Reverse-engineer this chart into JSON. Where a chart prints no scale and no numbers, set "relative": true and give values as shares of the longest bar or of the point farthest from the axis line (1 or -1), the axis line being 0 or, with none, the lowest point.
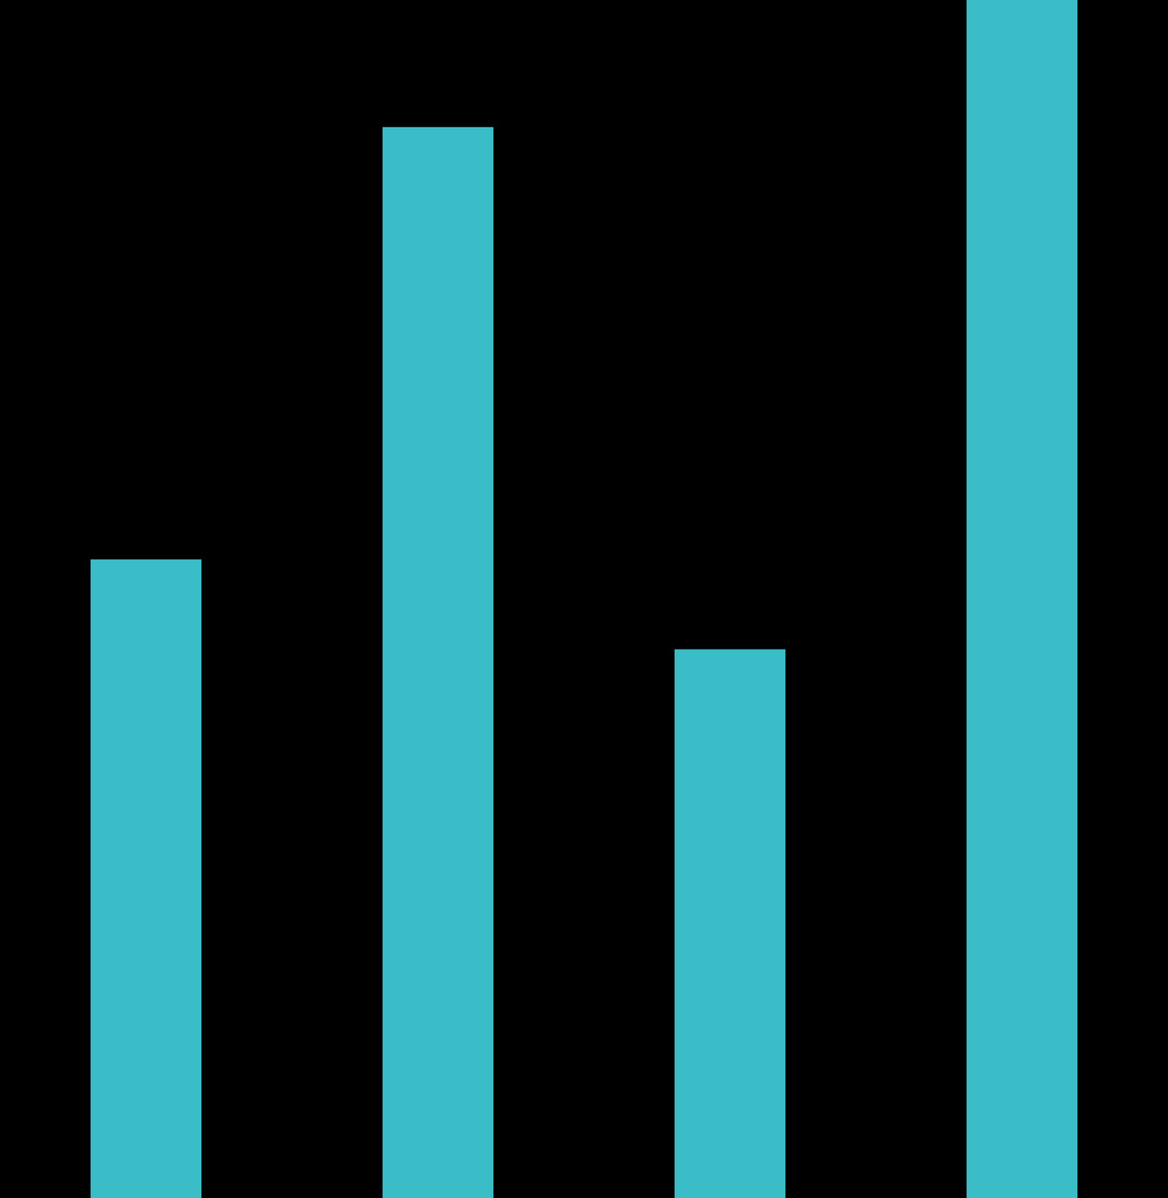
{
  "chart_data": {
    "type": "bar",
    "relative": true,
    "categories": [
      null,
      null,
      null,
      null
    ],
    "values": [
      0.533,
      0.894,
      0.458,
      1
    ],
    "color": "#3bbdc8"
  }
}
